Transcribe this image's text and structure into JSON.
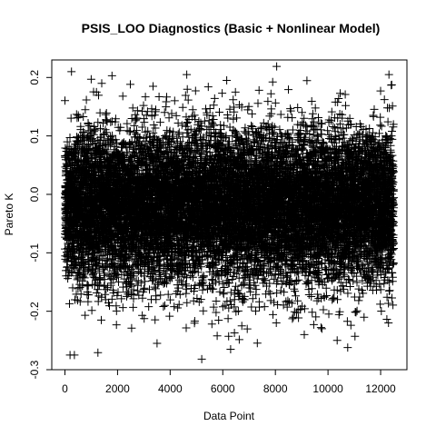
{
  "chart_data": {
    "type": "scatter",
    "title": "PSIS_LOO Diagnostics (Basic + Nonlinear Model)",
    "xlabel": "Data Point",
    "ylabel": "Pareto K",
    "marker": "plus",
    "color": "#000000",
    "grid": false,
    "xlim": [
      -500,
      13000
    ],
    "ylim": [
      -0.3,
      0.23
    ],
    "x_ticks": [
      0,
      2000,
      4000,
      6000,
      8000,
      10000,
      12000
    ],
    "x_tick_labels": [
      "0",
      "2000",
      "4000",
      "6000",
      "8000",
      "10000",
      "12000"
    ],
    "y_ticks": [
      -0.3,
      -0.2,
      -0.1,
      0.0,
      0.1,
      0.2
    ],
    "y_tick_labels": [
      "-0.3",
      "-0.2",
      "-0.1",
      "0.0",
      "0.1",
      "0.2"
    ],
    "n_points": 12500,
    "distribution": {
      "mean": -0.02,
      "sd": 0.065
    },
    "x_range": [
      1,
      12500
    ],
    "notable_points": [
      {
        "x": 250,
        "y": 0.21
      },
      {
        "x": 8050,
        "y": 0.219
      },
      {
        "x": 1000,
        "y": 0.197
      },
      {
        "x": 1400,
        "y": 0.19
      },
      {
        "x": 6150,
        "y": 0.195
      },
      {
        "x": 3350,
        "y": 0.185
      },
      {
        "x": 5450,
        "y": 0.184
      },
      {
        "x": 4650,
        "y": 0.18
      },
      {
        "x": 12000,
        "y": 0.177
      },
      {
        "x": 2200,
        "y": 0.168
      },
      {
        "x": 5200,
        "y": -0.282
      },
      {
        "x": 6300,
        "y": -0.265
      },
      {
        "x": 10750,
        "y": -0.262
      },
      {
        "x": 3500,
        "y": -0.255
      },
      {
        "x": 9100,
        "y": -0.24
      },
      {
        "x": 12300,
        "y": -0.22
      }
    ]
  }
}
